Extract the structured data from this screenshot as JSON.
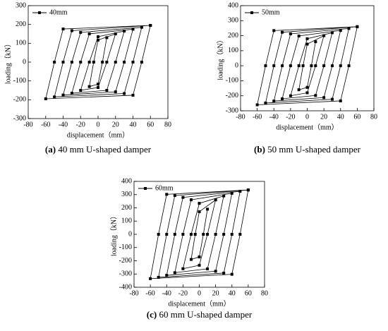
{
  "chart_data": [
    {
      "type": "line",
      "legend": "upper left",
      "caption_label": "(a)",
      "caption": "40 mm U-shaped damper",
      "xlabel": "displacement（mm）",
      "ylabel": "loading（kN）",
      "xlim": [
        -80,
        80
      ],
      "xticks": [
        -80,
        -60,
        -40,
        -20,
        0,
        20,
        40,
        60,
        80
      ],
      "ylim": [
        -300,
        300
      ],
      "yticks": [
        -300,
        -200,
        -100,
        0,
        100,
        200,
        300
      ],
      "series": [
        {
          "name": "40mm",
          "color": "#000000",
          "x": [
            10,
            5,
            0,
            -10,
            -5,
            0,
            20,
            10,
            0,
            -20,
            -10,
            0,
            30,
            20,
            10,
            -30,
            -20,
            -10,
            40,
            30,
            20,
            -40,
            -30,
            -20,
            50,
            40,
            30,
            -50,
            -40,
            -30,
            60,
            50,
            40,
            -60,
            -50,
            -40,
            60
          ],
          "values": [
            130,
            0,
            -117,
            -130,
            0,
            117,
            150,
            0,
            -135,
            -150,
            0,
            135,
            165,
            0,
            -150,
            -165,
            0,
            150,
            175,
            0,
            -158,
            -175,
            0,
            158,
            185,
            0,
            -167,
            -185,
            0,
            167,
            195,
            0,
            -176,
            -195,
            0,
            176,
            195
          ]
        }
      ]
    },
    {
      "type": "line",
      "legend": "upper left",
      "caption_label": "(b)",
      "caption": "50 mm U-shaped damper",
      "xlabel": "displacement（mm）",
      "ylabel": "loading（kN）",
      "xlim": [
        -80,
        80
      ],
      "xticks": [
        -80,
        -60,
        -40,
        -20,
        0,
        20,
        40,
        60,
        80
      ],
      "ylim": [
        -300,
        400
      ],
      "yticks": [
        -300,
        -200,
        -100,
        0,
        100,
        200,
        300,
        400
      ],
      "series": [
        {
          "name": "50mm",
          "color": "#000000",
          "x": [
            10,
            5,
            0,
            -10,
            -5,
            0,
            20,
            10,
            0,
            -20,
            -10,
            0,
            30,
            20,
            10,
            -30,
            -20,
            -10,
            40,
            30,
            20,
            -40,
            -30,
            -20,
            50,
            40,
            30,
            -50,
            -40,
            -30,
            60,
            50,
            40,
            -60,
            -50,
            -40,
            60
          ],
          "values": [
            160,
            0,
            -144,
            -160,
            0,
            144,
            200,
            0,
            -180,
            -200,
            0,
            180,
            220,
            0,
            -198,
            -220,
            0,
            198,
            235,
            0,
            -212,
            -235,
            0,
            212,
            248,
            0,
            -223,
            -248,
            0,
            223,
            260,
            0,
            -234,
            -260,
            0,
            234,
            260
          ]
        }
      ]
    },
    {
      "type": "line",
      "legend": "upper left",
      "caption_label": "(c)",
      "caption": "60 mm U-shaped damper",
      "xlabel": "displacement（mm）",
      "ylabel": "loading（kN）",
      "xlim": [
        -80,
        80
      ],
      "xticks": [
        -80,
        -60,
        -40,
        -20,
        0,
        20,
        40,
        60,
        80
      ],
      "ylim": [
        -400,
        400
      ],
      "yticks": [
        -400,
        -300,
        -200,
        -100,
        0,
        100,
        200,
        300,
        400
      ],
      "series": [
        {
          "name": "60mm",
          "color": "#000000",
          "x": [
            10,
            5,
            0,
            -10,
            -5,
            0,
            20,
            10,
            0,
            -20,
            -10,
            0,
            30,
            20,
            10,
            -30,
            -20,
            -10,
            40,
            30,
            20,
            -40,
            -30,
            -20,
            50,
            40,
            30,
            -50,
            -40,
            -30,
            60,
            50,
            40,
            -60,
            -50,
            -40,
            60
          ],
          "values": [
            190,
            0,
            -171,
            -190,
            0,
            171,
            260,
            0,
            -234,
            -260,
            0,
            234,
            290,
            0,
            -261,
            -290,
            0,
            261,
            310,
            0,
            -279,
            -310,
            0,
            279,
            325,
            0,
            -293,
            -325,
            0,
            293,
            335,
            0,
            -302,
            -335,
            0,
            302,
            335
          ]
        }
      ]
    }
  ]
}
